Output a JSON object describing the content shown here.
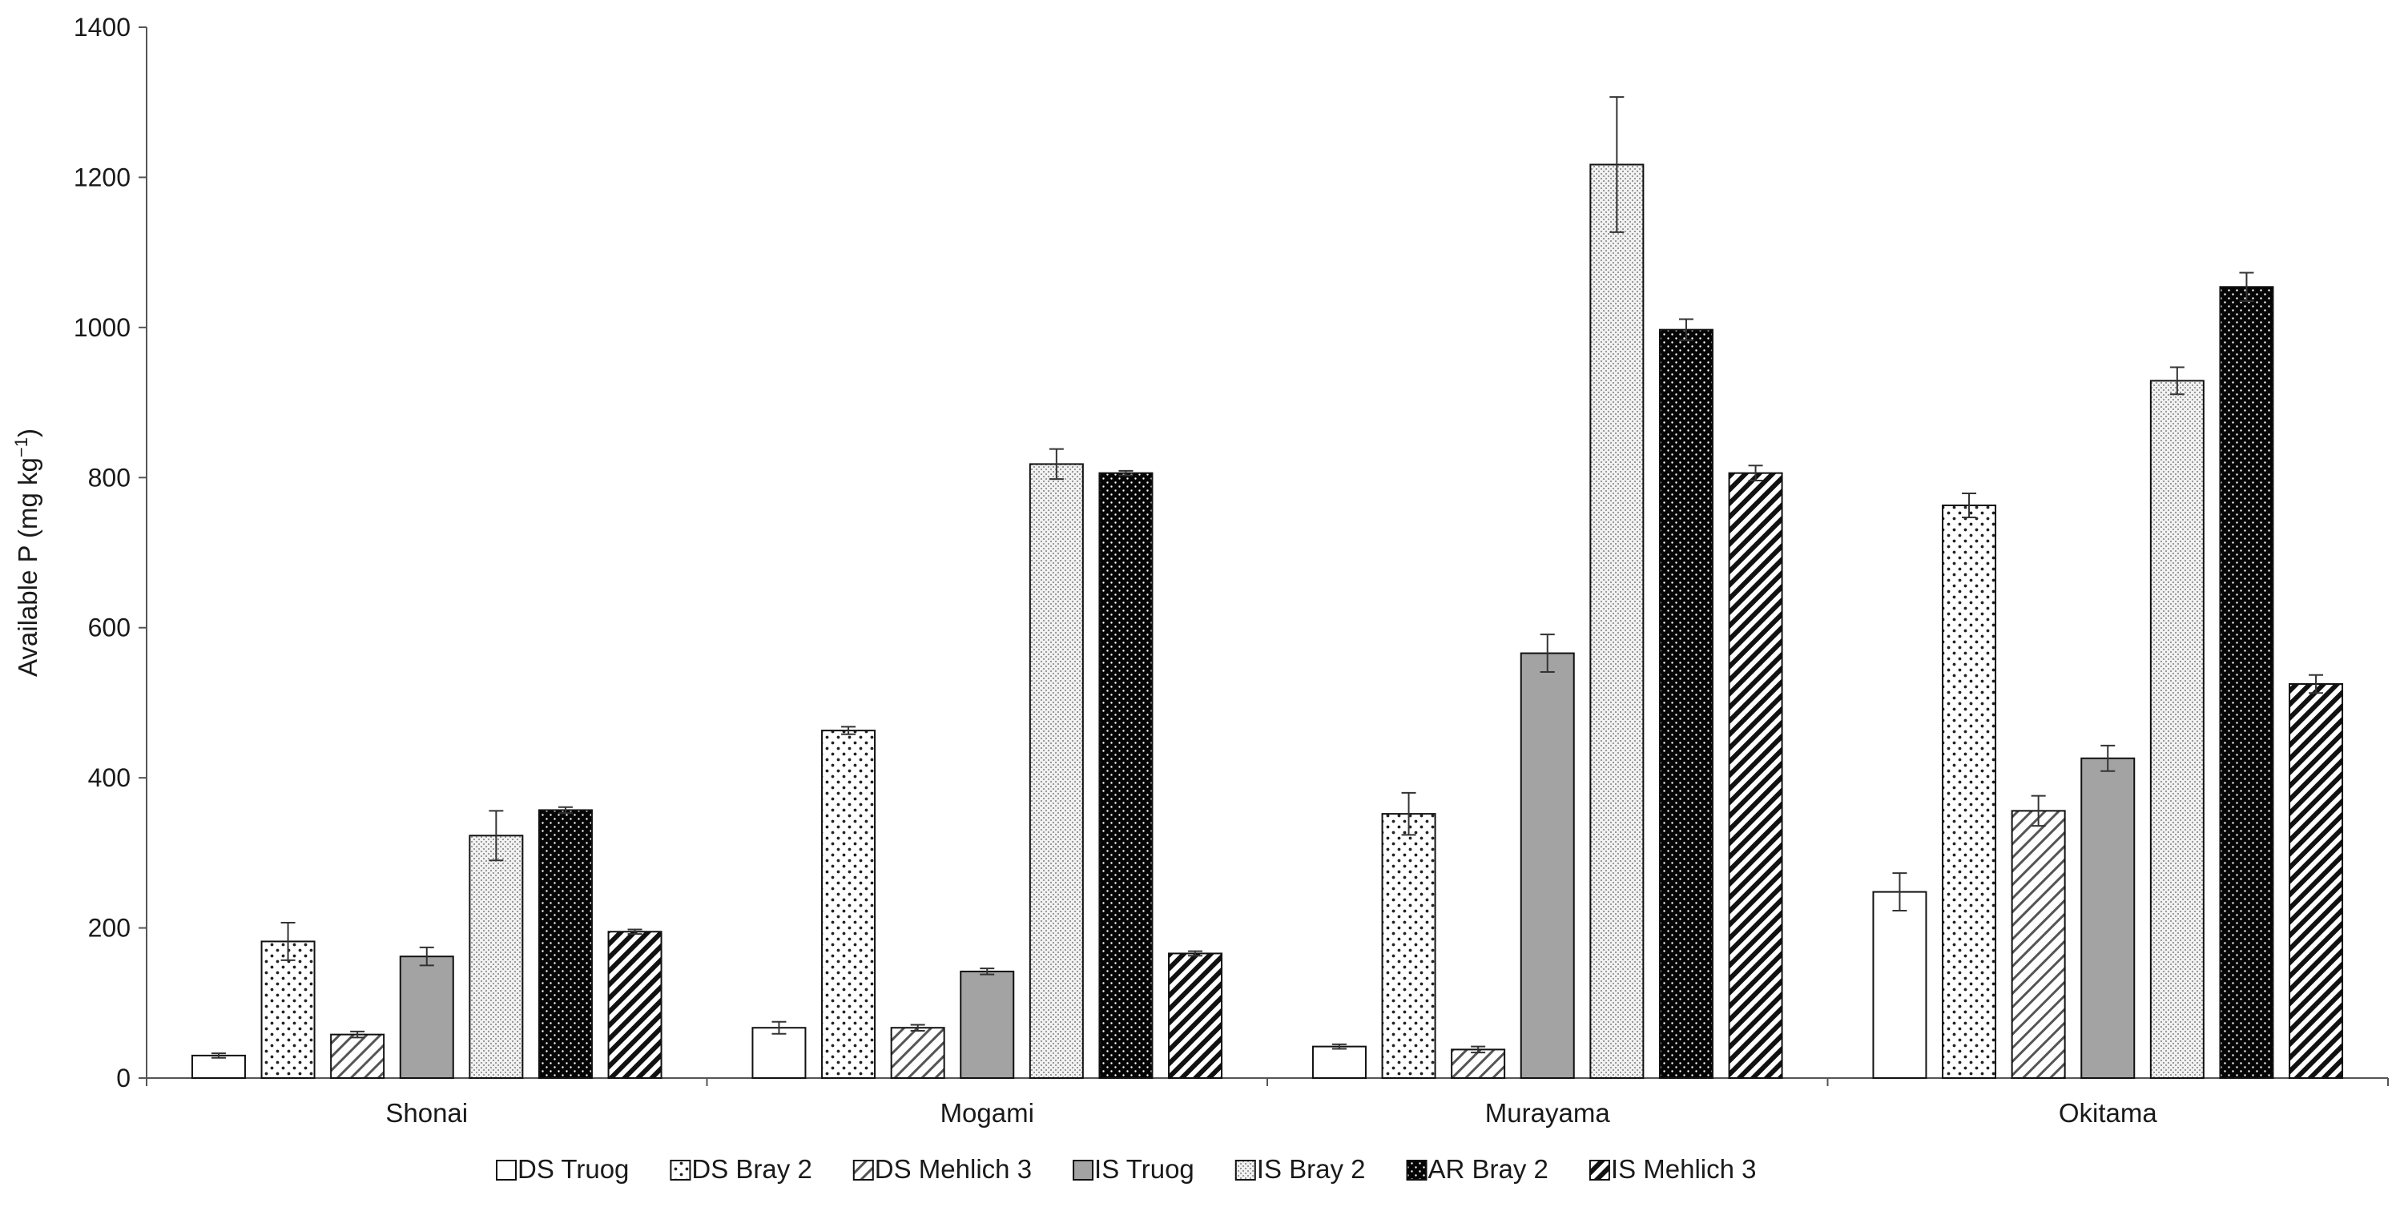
{
  "chart_data": {
    "type": "bar",
    "title": "",
    "xlabel": "",
    "ylabel": "Available P (mg kg",
    "ylabel_superscript": "−1",
    "ylabel_close": ")",
    "ylim": [
      0,
      1400
    ],
    "yticks": [
      0,
      200,
      400,
      600,
      800,
      1000,
      1200,
      1400
    ],
    "grid": false,
    "legend_position": "bottom",
    "categories": [
      "Shonai",
      "Mogami",
      "Murayama",
      "Okitama"
    ],
    "series": [
      {
        "name": "DS Truog",
        "pattern": "white",
        "values": [
          30,
          67,
          42,
          248
        ],
        "errors": [
          3,
          8,
          3,
          25
        ]
      },
      {
        "name": "DS Bray 2",
        "pattern": "dots",
        "values": [
          182,
          463,
          352,
          763
        ],
        "errors": [
          25,
          5,
          28,
          16
        ]
      },
      {
        "name": "DS Mehlich 3",
        "pattern": "diagonal",
        "values": [
          58,
          67,
          38,
          356
        ],
        "errors": [
          4,
          4,
          4,
          20
        ]
      },
      {
        "name": "IS Truog",
        "pattern": "gray",
        "values": [
          162,
          142,
          566,
          426
        ],
        "errors": [
          12,
          4,
          25,
          17
        ]
      },
      {
        "name": "IS Bray 2",
        "pattern": "fine",
        "values": [
          323,
          818,
          1217,
          929
        ],
        "errors": [
          33,
          20,
          90,
          18
        ]
      },
      {
        "name": "AR Bray 2",
        "pattern": "black",
        "values": [
          357,
          806,
          997,
          1054
        ],
        "errors": [
          4,
          3,
          14,
          19
        ]
      },
      {
        "name": "IS Mehlich 3",
        "pattern": "hatch",
        "values": [
          195,
          166,
          806,
          525
        ],
        "errors": [
          3,
          3,
          10,
          12
        ]
      }
    ]
  }
}
